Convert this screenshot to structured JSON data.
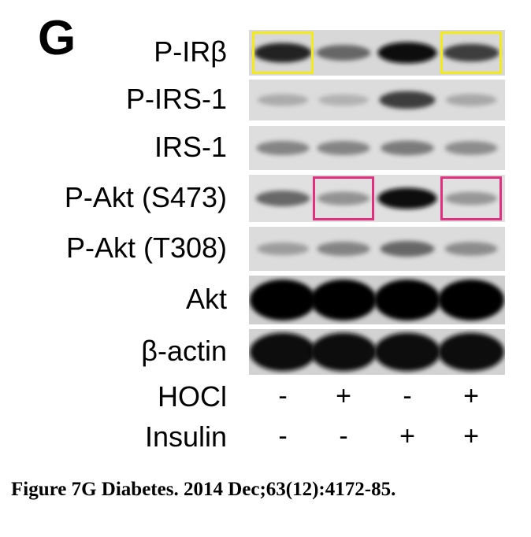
{
  "panel_label": "G",
  "blots": [
    {
      "label": "P-IRβ",
      "bg": "#d8d8d8",
      "intensity": [
        0.82,
        0.55,
        0.95,
        0.7
      ]
    },
    {
      "label": "P-IRS-1",
      "bg": "#dcdcdc",
      "intensity": [
        0.28,
        0.25,
        0.7,
        0.3
      ]
    },
    {
      "label": "IRS-1",
      "bg": "#dedede",
      "intensity": [
        0.45,
        0.45,
        0.48,
        0.42
      ]
    },
    {
      "label": "P-Akt (S473)",
      "bg": "#e0e0e0",
      "intensity": [
        0.55,
        0.4,
        0.95,
        0.38
      ]
    },
    {
      "label": "P-Akt (T308)",
      "bg": "#dcdcdc",
      "intensity": [
        0.35,
        0.45,
        0.55,
        0.42
      ]
    },
    {
      "label": "Akt",
      "bg": "#cfcfcf",
      "intensity": [
        1.0,
        1.0,
        1.0,
        1.0
      ]
    },
    {
      "label": "β-actin",
      "bg": "#d2d2d2",
      "intensity": [
        0.92,
        0.92,
        0.92,
        0.92
      ]
    }
  ],
  "highlights": [
    {
      "row": 0,
      "lane": 0,
      "color": "#f2ea1d"
    },
    {
      "row": 0,
      "lane": 3,
      "color": "#f2ea1d"
    },
    {
      "row": 3,
      "lane": 1,
      "color": "#e0307f"
    },
    {
      "row": 3,
      "lane": 3,
      "color": "#e0307f"
    }
  ],
  "conditions": [
    {
      "label": "HOCl",
      "values": [
        "-",
        "+",
        "-",
        "+"
      ]
    },
    {
      "label": "Insulin",
      "values": [
        "-",
        "-",
        "+",
        "+"
      ]
    }
  ],
  "caption": "Figure 7G Diabetes. 2014 Dec;63(12):4172-85."
}
